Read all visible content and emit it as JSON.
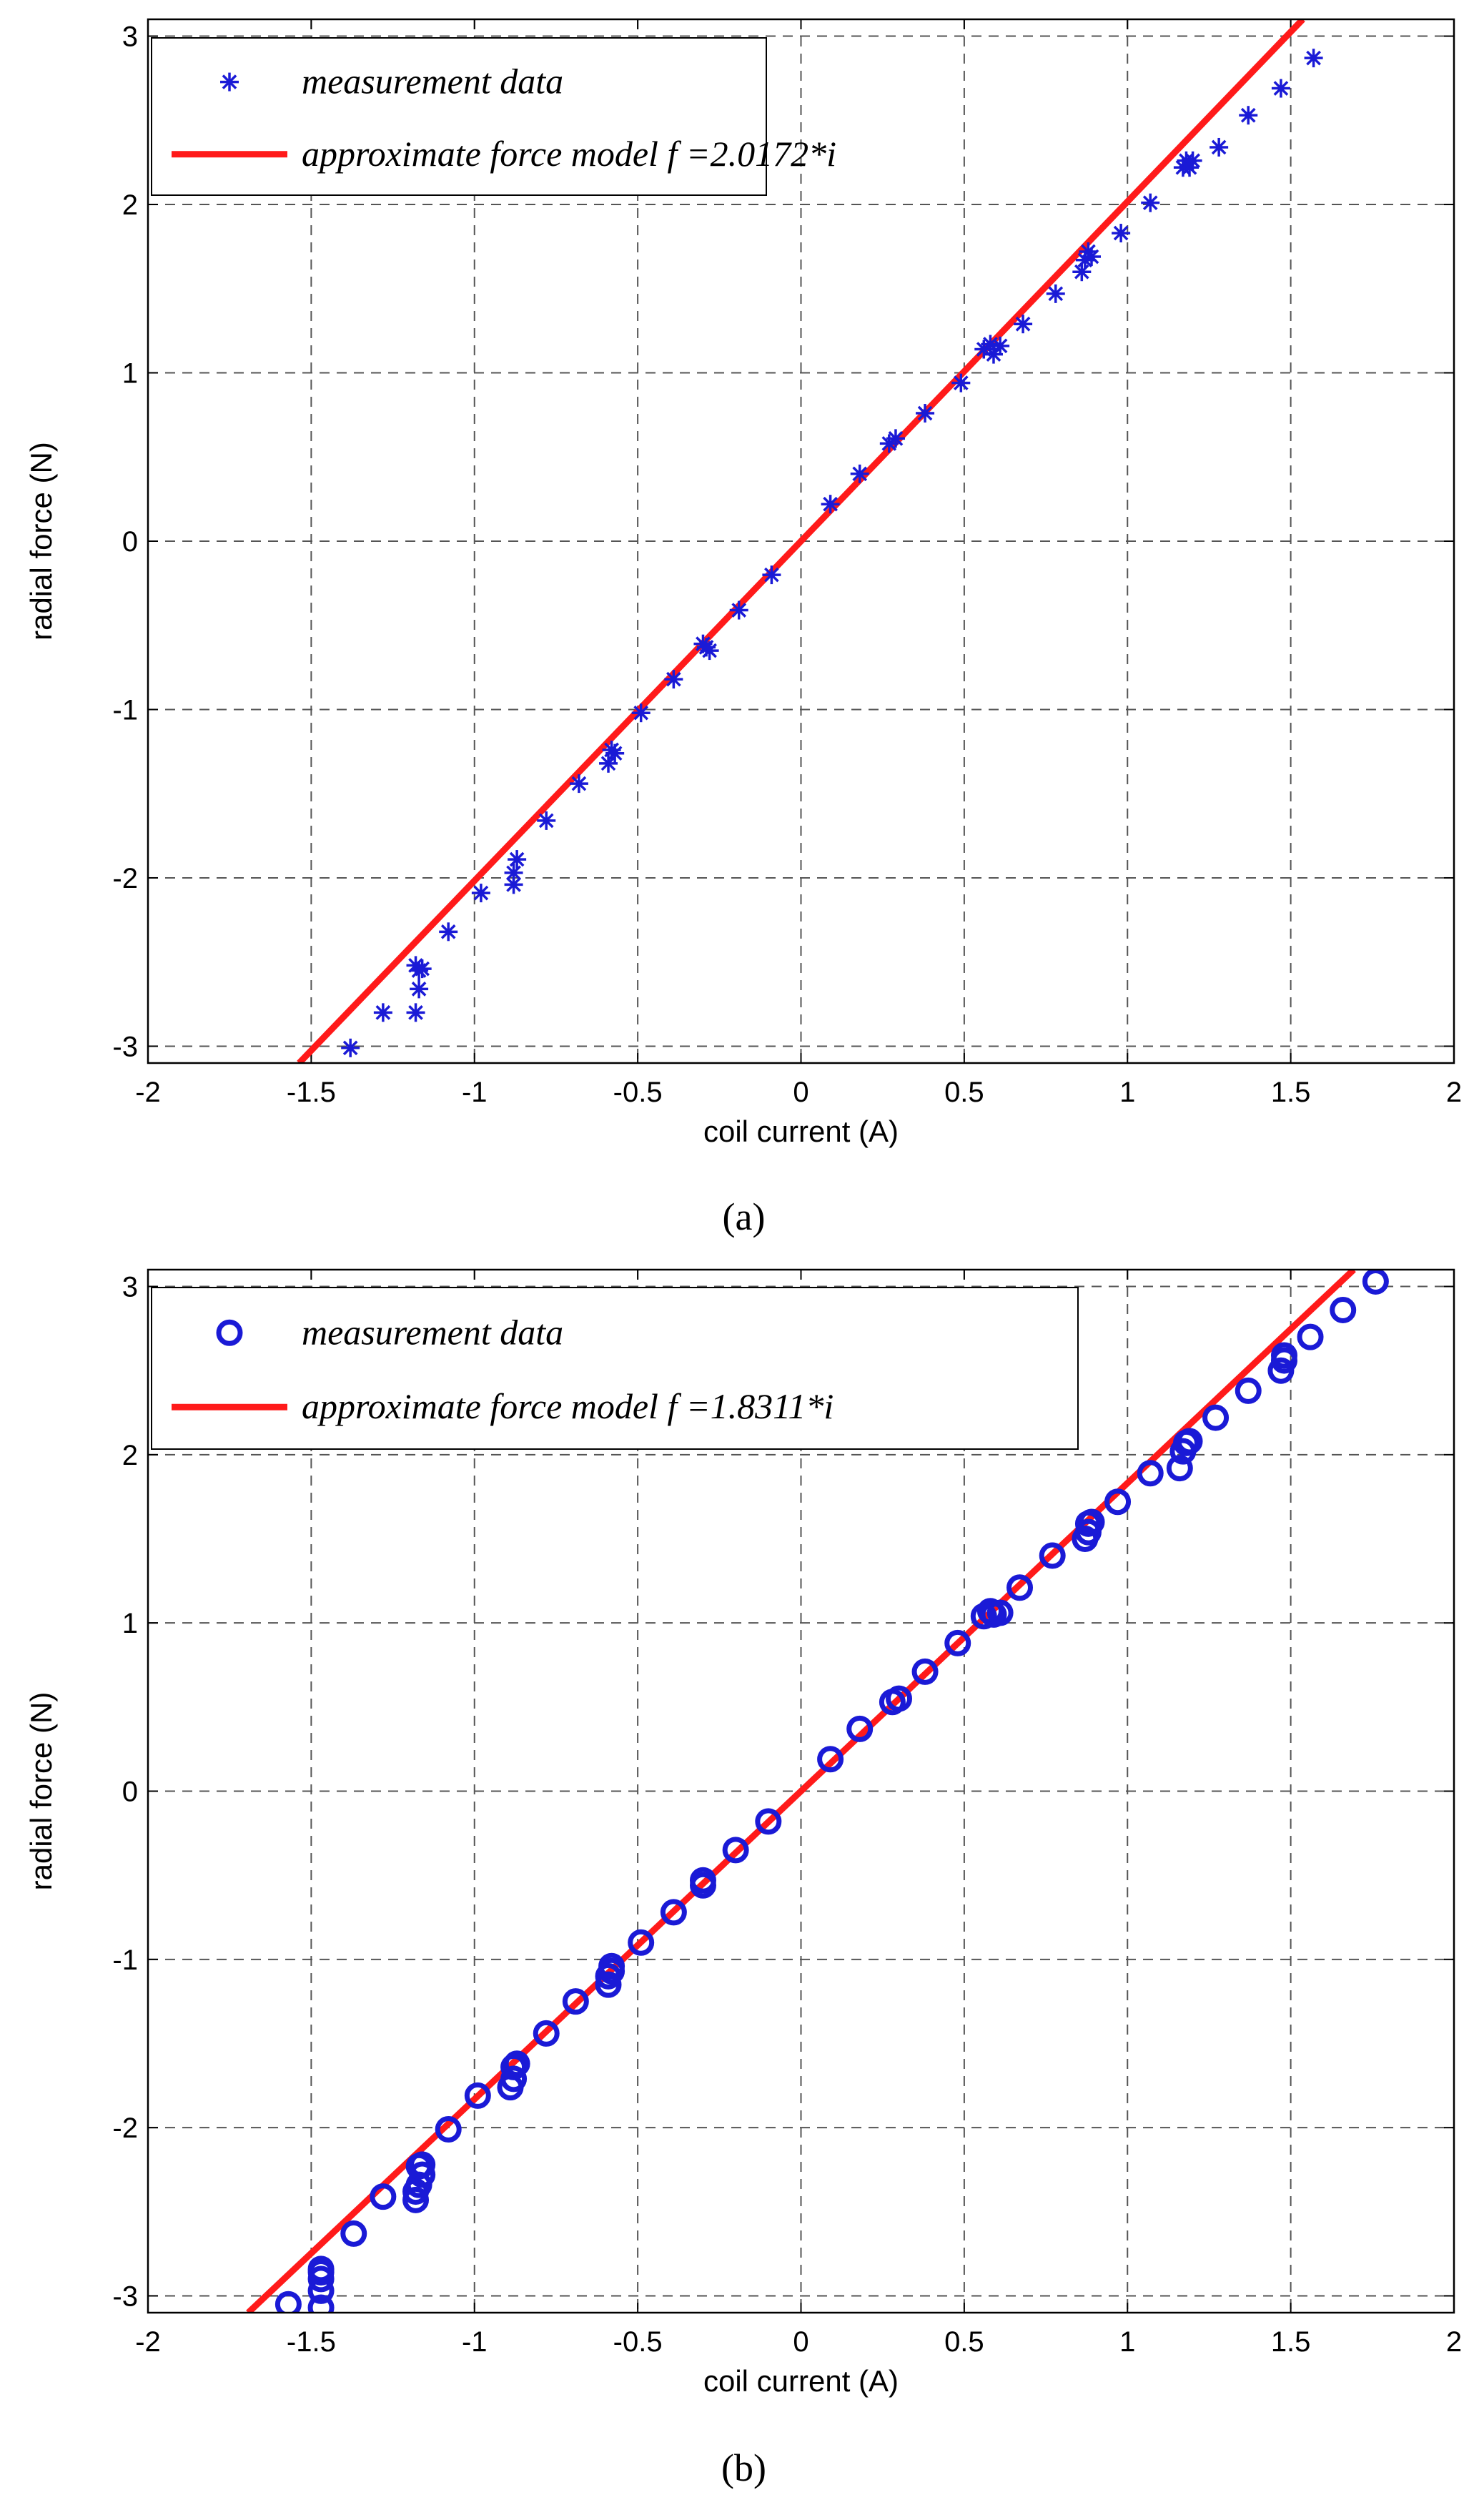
{
  "chart_data": [
    {
      "type": "scatter",
      "panel_label": "(a)",
      "xlabel": "coil current (A)",
      "ylabel": "radial force (N)",
      "xlim": [
        -2,
        2
      ],
      "ylim": [
        -3.1,
        3.1
      ],
      "xticks": [
        "-2",
        "-1.5",
        "-1",
        "-0.5",
        "0",
        "0.5",
        "1",
        "1.5",
        "2"
      ],
      "yticks": [
        "-3",
        "-2",
        "-1",
        "0",
        "1",
        "2",
        "3"
      ],
      "grid": true,
      "legend_position": "top-left",
      "colors": {
        "points": "#1a1ad6",
        "line": "#ff1a1a"
      },
      "marker": "asterisk",
      "series": [
        {
          "name": "measurement data",
          "kind": "points",
          "x": [
            -1.38,
            -1.28,
            -1.18,
            -1.17,
            -1.18,
            -1.17,
            -1.16,
            -1.08,
            -0.98,
            -0.88,
            -0.87,
            -0.88,
            -0.78,
            -0.68,
            -0.59,
            -0.57,
            -0.58,
            -0.49,
            -0.39,
            -0.29,
            -0.3,
            -0.28,
            -0.19,
            -0.09,
            0.09,
            0.18,
            0.27,
            0.29,
            0.38,
            0.49,
            0.56,
            0.58,
            0.59,
            0.61,
            0.68,
            0.78,
            0.86,
            0.87,
            0.88,
            0.89,
            0.98,
            1.07,
            1.17,
            1.18,
            1.19,
            1.2,
            1.28,
            1.37,
            1.47,
            1.57
          ],
          "y": [
            -3.01,
            -2.8,
            -2.52,
            -2.66,
            -2.8,
            -2.55,
            -2.54,
            -2.32,
            -2.09,
            -1.97,
            -1.89,
            -2.04,
            -1.66,
            -1.44,
            -1.32,
            -1.26,
            -1.24,
            -1.02,
            -0.82,
            -0.63,
            -0.61,
            -0.65,
            -0.41,
            -0.2,
            0.22,
            0.4,
            0.58,
            0.61,
            0.76,
            0.94,
            1.14,
            1.17,
            1.11,
            1.16,
            1.29,
            1.47,
            1.6,
            1.67,
            1.72,
            1.69,
            1.83,
            2.01,
            2.22,
            2.26,
            2.22,
            2.26,
            2.34,
            2.53,
            2.69,
            2.87
          ]
        },
        {
          "name": "approximate force model f =2.0172*i",
          "kind": "line",
          "slope": 2.0172,
          "x": [
            -1.537,
            1.537
          ],
          "y": [
            -3.1,
            3.1
          ]
        }
      ]
    },
    {
      "type": "scatter",
      "panel_label": "(b)",
      "xlabel": "coil current (A)",
      "ylabel": "radial force (N)",
      "xlim": [
        -2,
        2
      ],
      "ylim": [
        -3.1,
        3.1
      ],
      "xticks": [
        "-2",
        "-1.5",
        "-1",
        "-0.5",
        "0",
        "0.5",
        "1",
        "1.5",
        "2"
      ],
      "yticks": [
        "-3",
        "-2",
        "-1",
        "0",
        "1",
        "2",
        "3"
      ],
      "grid": true,
      "legend_position": "top-left",
      "colors": {
        "points": "#1a1ad6",
        "line": "#ff1a1a"
      },
      "marker": "circle",
      "series": [
        {
          "name": "measurement data",
          "kind": "points",
          "x": [
            -1.57,
            -1.47,
            -1.47,
            -1.47,
            -1.47,
            -1.47,
            -1.37,
            -1.28,
            -1.18,
            -1.18,
            -1.17,
            -1.16,
            -1.17,
            -1.16,
            -1.08,
            -0.99,
            -0.89,
            -0.88,
            -0.88,
            -0.87,
            -0.78,
            -0.69,
            -0.59,
            -0.59,
            -0.58,
            -0.58,
            -0.49,
            -0.39,
            -0.3,
            -0.3,
            -0.2,
            -0.1,
            0.09,
            0.18,
            0.28,
            0.3,
            0.38,
            0.48,
            0.56,
            0.58,
            0.59,
            0.61,
            0.67,
            0.77,
            0.87,
            0.88,
            0.88,
            0.89,
            0.97,
            1.07,
            1.16,
            1.17,
            1.18,
            1.19,
            1.27,
            1.37,
            1.47,
            1.48,
            1.48,
            1.56,
            1.66,
            1.76
          ],
          "y": [
            -3.05,
            -3.07,
            -2.97,
            -2.9,
            -2.86,
            -2.84,
            -2.63,
            -2.41,
            -2.43,
            -2.38,
            -2.34,
            -2.28,
            -2.23,
            -2.22,
            -2.01,
            -1.81,
            -1.76,
            -1.71,
            -1.64,
            -1.62,
            -1.44,
            -1.25,
            -1.15,
            -1.1,
            -1.07,
            -1.04,
            -0.9,
            -0.72,
            -0.56,
            -0.53,
            -0.35,
            -0.18,
            0.19,
            0.37,
            0.53,
            0.55,
            0.71,
            0.88,
            1.04,
            1.07,
            1.05,
            1.06,
            1.21,
            1.4,
            1.5,
            1.54,
            1.59,
            1.6,
            1.72,
            1.89,
            1.92,
            2.02,
            2.07,
            2.08,
            2.22,
            2.38,
            2.5,
            2.56,
            2.59,
            2.7,
            2.86,
            3.03
          ]
        },
        {
          "name": "approximate force model f =1.8311*i",
          "kind": "line",
          "slope": 1.8311,
          "x": [
            -1.693,
            1.693
          ],
          "y": [
            -3.1,
            3.1
          ]
        }
      ]
    }
  ]
}
